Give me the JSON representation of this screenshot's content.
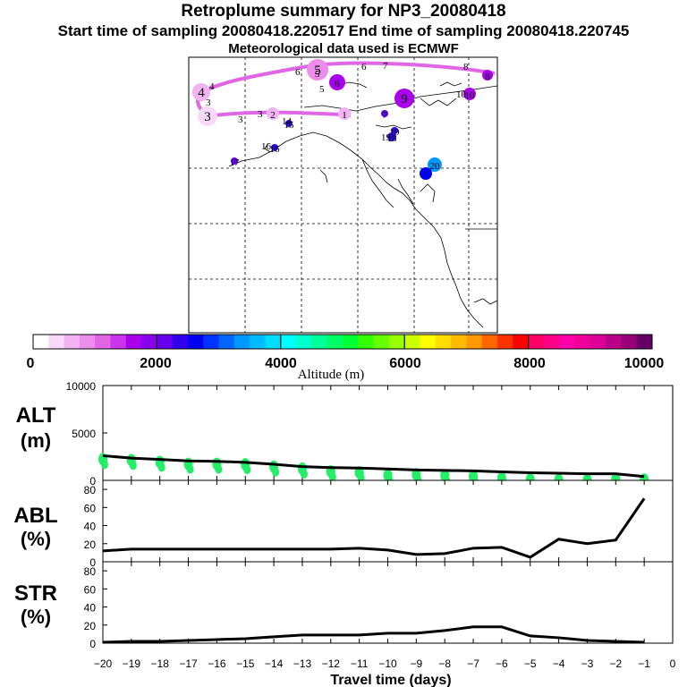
{
  "header": {
    "title": "Retroplume summary for NP3_20080418",
    "sampling": "Start time of sampling 20080418.220517      End time of sampling 20080418.220745",
    "met": "Meteorological data used is ECMWF"
  },
  "colorbar": {
    "label": "Altitude (m)",
    "min": 0,
    "max": 10000,
    "tick_labels": [
      "0",
      "2000",
      "4000",
      "6000",
      "8000",
      "10000"
    ],
    "colors": [
      "#ffffff",
      "#f9d9f9",
      "#f3b3f3",
      "#ec8cec",
      "#e066e6",
      "#cc33ee",
      "#aa00ee",
      "#8800ee",
      "#6600ee",
      "#3300ee",
      "#0000ee",
      "#0033ff",
      "#0066ff",
      "#0099ff",
      "#00bbff",
      "#00ddff",
      "#00ffff",
      "#00ffcc",
      "#00ff99",
      "#00ff66",
      "#00ff33",
      "#33ff00",
      "#66ff00",
      "#99ff00",
      "#ccff00",
      "#ffff00",
      "#ffdd00",
      "#ffbb00",
      "#ff9900",
      "#ff6600",
      "#ff3300",
      "#ff0000",
      "#ff0066",
      "#ff0088",
      "#ff00aa",
      "#ee0099",
      "#dd0099",
      "#bb0088",
      "#990077",
      "#660066"
    ]
  },
  "map": {
    "markers": [
      {
        "label": "1",
        "lon_x": 385,
        "lat_y": 127,
        "r": 7,
        "color": "#f3b3f3"
      },
      {
        "label": "2",
        "lon_x": 305,
        "lat_y": 127,
        "r": 7,
        "color": "#f3b3f3"
      },
      {
        "label": "3",
        "lon_x": 232,
        "lat_y": 130,
        "r": 11,
        "color": "#f9d9f9"
      },
      {
        "label": "4",
        "lon_x": 225,
        "lat_y": 103,
        "r": 10,
        "color": "#f3b3f3"
      },
      {
        "label": "5",
        "lon_x": 355,
        "lat_y": 78,
        "r": 12,
        "color": "#ec8cec"
      },
      {
        "label": "6",
        "lon_x": 377,
        "lat_y": 92,
        "r": 9,
        "color": "#aa00ee"
      },
      {
        "label": "7",
        "lon_x": 430,
        "lat_y": 127,
        "r": 4,
        "color": "#6600ee"
      },
      {
        "label": "9",
        "lon_x": 452,
        "lat_y": 110,
        "r": 11,
        "color": "#aa00ee"
      },
      {
        "label": "10",
        "lon_x": 525,
        "lat_y": 105,
        "r": 7,
        "color": "#aa00ee"
      },
      {
        "label": "15",
        "lon_x": 323,
        "lat_y": 138,
        "r": 4,
        "color": "#3300ee"
      },
      {
        "label": "16",
        "lon_x": 307,
        "lat_y": 165,
        "r": 4,
        "color": "#3300ee"
      },
      {
        "label": "18",
        "lon_x": 438,
        "lat_y": 153,
        "r": 5,
        "color": "#3300ee"
      },
      {
        "label": "19",
        "lon_x": 441,
        "lat_y": 146,
        "r": 4,
        "color": "#3300ee"
      },
      {
        "label": "17",
        "lon_x": 262,
        "lat_y": 180,
        "r": 4,
        "color": "#6600ee"
      },
      {
        "label": "20",
        "lon_x": 486,
        "lat_y": 184,
        "r": 8,
        "color": "#0099ff"
      },
      {
        "label": "",
        "lon_x": 476,
        "lat_y": 194,
        "r": 7,
        "color": "#0000ee"
      },
      {
        "label": "8",
        "lon_x": 545,
        "lat_y": 84,
        "r": 6,
        "color": "#aa00ee"
      }
    ],
    "extra_labels": [
      "4",
      "3",
      "3",
      "6",
      "6",
      "7",
      "8",
      "5",
      "5",
      "3",
      "10",
      "16",
      "19",
      "14"
    ]
  },
  "chart_data": [
    {
      "type": "line",
      "panel": "ALT",
      "title": "ALT",
      "ylabel": "(m)",
      "ylim": [
        0,
        10000
      ],
      "yticks": [
        "0",
        "5000",
        "10000"
      ],
      "x": [
        -20,
        -19,
        -18,
        -17,
        -16,
        -15,
        -14,
        -13,
        -12,
        -11,
        -10,
        -9,
        -8,
        -7,
        -6,
        -5,
        -4,
        -3,
        -2,
        -1
      ],
      "values": [
        2600,
        2350,
        2200,
        2050,
        2000,
        1900,
        1700,
        1450,
        1350,
        1300,
        1200,
        1100,
        1050,
        1000,
        900,
        800,
        750,
        700,
        700,
        400
      ],
      "point_clusters": [
        2800,
        2700,
        2500,
        2300,
        2300,
        2250,
        2000,
        1800,
        1500,
        1400,
        1100,
        1200,
        1100,
        1000,
        800,
        650,
        600,
        600,
        700,
        650
      ]
    },
    {
      "type": "line",
      "panel": "ABL",
      "title": "ABL",
      "ylabel": "(%)",
      "ylim": [
        0,
        90
      ],
      "yticks": [
        "0",
        "20",
        "40",
        "60",
        "80"
      ],
      "x": [
        -20,
        -19,
        -18,
        -17,
        -16,
        -15,
        -14,
        -13,
        -12,
        -11,
        -10,
        -9,
        -8,
        -7,
        -6,
        -5,
        -4,
        -3,
        -2,
        -1
      ],
      "values": [
        12,
        14,
        14,
        14,
        14,
        14,
        14,
        14,
        14,
        15,
        13,
        8,
        9,
        15,
        16,
        5,
        25,
        20,
        24,
        70
      ]
    },
    {
      "type": "line",
      "panel": "STR",
      "title": "STR",
      "ylabel": "(%)",
      "ylim": [
        0,
        90
      ],
      "yticks": [
        "0",
        "20",
        "40",
        "60",
        "80"
      ],
      "x": [
        -20,
        -19,
        -18,
        -17,
        -16,
        -15,
        -14,
        -13,
        -12,
        -11,
        -10,
        -9,
        -8,
        -7,
        -6,
        -5,
        -4,
        -3,
        -2,
        -1
      ],
      "values": [
        1,
        2,
        2,
        3,
        4,
        5,
        7,
        9,
        9,
        9,
        11,
        11,
        14,
        18,
        18,
        8,
        6,
        3,
        2,
        1
      ]
    }
  ],
  "xaxis": {
    "label": "Travel time (days)",
    "min": -20,
    "max": 0,
    "tick_labels": [
      "−20",
      "−19",
      "−18",
      "−17",
      "−16",
      "−15",
      "−14",
      "−13",
      "−12",
      "−11",
      "−10",
      "−9",
      "−8",
      "−7",
      "−6",
      "−5",
      "−4",
      "−3",
      "−2",
      "−1",
      "0"
    ]
  }
}
